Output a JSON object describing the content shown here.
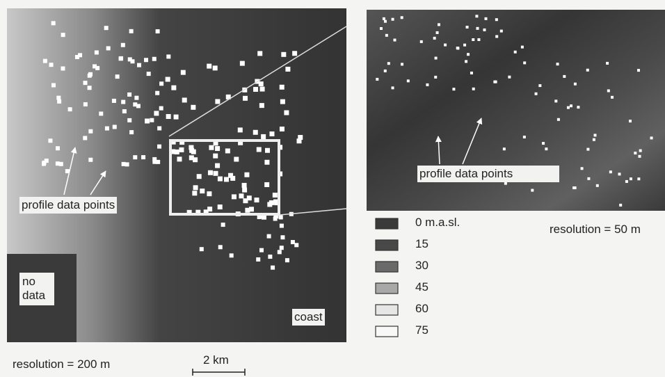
{
  "left_map": {
    "profile_label": "profile data points",
    "no_data_label": [
      "no",
      "data"
    ],
    "coast_label": "coast",
    "resolution": "resolution = 200 m",
    "scale_bar": "2 km"
  },
  "right_map": {
    "profile_label": "profile data points",
    "resolution": "resolution = 50 m"
  },
  "legend": {
    "items": [
      "0 m.a.sl.",
      "15",
      "30",
      "45",
      "60",
      "75"
    ]
  }
}
